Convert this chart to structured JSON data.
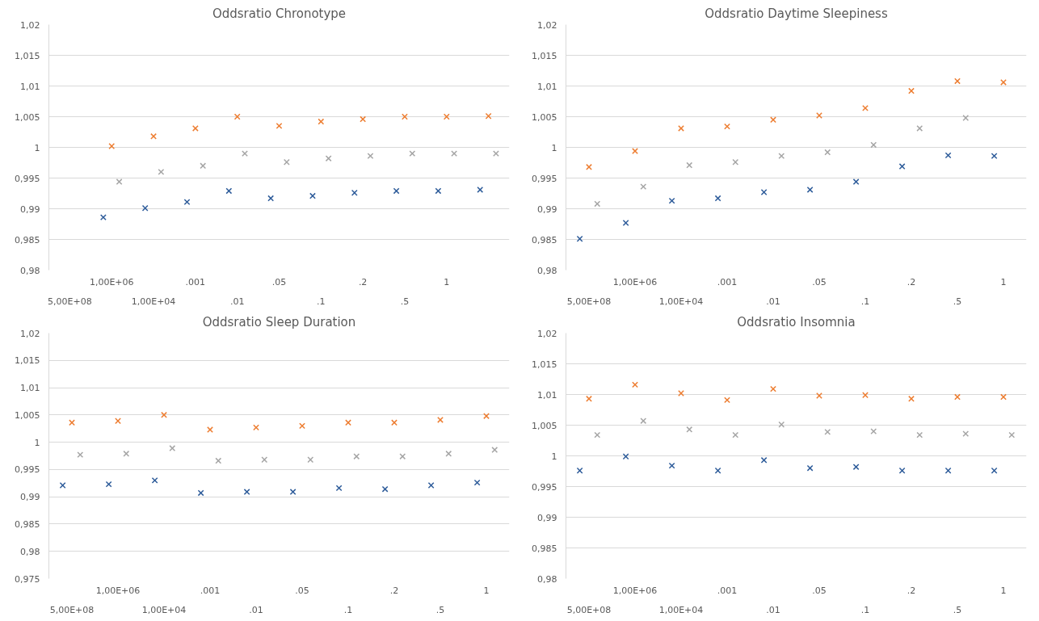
{
  "chart_data": [
    {
      "type": "scatter",
      "title": "Oddsratio Chronotype",
      "categories": [
        "5,00E+08",
        "1,00E+06",
        "1,00E+04",
        ".001",
        ".01",
        ".05",
        ".1",
        ".2",
        ".5",
        "1",
        null
      ],
      "ylim": [
        0.98,
        1.02
      ],
      "yticks": [
        {
          "value": 0.98,
          "label": "0,98"
        },
        {
          "value": 0.985,
          "label": "0,985"
        },
        {
          "value": 0.99,
          "label": "0,99"
        },
        {
          "value": 0.995,
          "label": "0,995"
        },
        {
          "value": 1,
          "label": "1"
        },
        {
          "value": 1.005,
          "label": "1,005"
        },
        {
          "value": 1.01,
          "label": "1,01"
        },
        {
          "value": 1.015,
          "label": "1,015"
        },
        {
          "value": 1.02,
          "label": "1,02"
        }
      ],
      "grid": "y",
      "marker": "cross",
      "series": [
        {
          "color": "#2e5c9a",
          "values": [
            null,
            0.9886,
            0.9901,
            0.9911,
            0.9929,
            0.9917,
            0.9921,
            0.9926,
            0.9929,
            0.9929,
            0.9931
          ]
        },
        {
          "color": "#ed7d31",
          "values": [
            null,
            1.0002,
            1.0018,
            1.0031,
            1.005,
            1.0035,
            1.0042,
            1.0046,
            1.005,
            1.005,
            1.0051
          ]
        },
        {
          "color": "#a5a5a5",
          "values": [
            null,
            0.9944,
            0.996,
            0.997,
            0.999,
            0.9976,
            0.9982,
            0.9986,
            0.999,
            0.999,
            0.999
          ]
        }
      ]
    },
    {
      "type": "scatter",
      "title": "Oddsratio Daytime Sleepiness",
      "categories": [
        "5,00E+08",
        "1,00E+06",
        "1,00E+04",
        ".001",
        ".01",
        ".05",
        ".1",
        ".2",
        ".5",
        "1"
      ],
      "ylim": [
        0.98,
        1.02
      ],
      "yticks": [
        {
          "value": 0.98,
          "label": "0,98"
        },
        {
          "value": 0.985,
          "label": "0,985"
        },
        {
          "value": 0.99,
          "label": "0,99"
        },
        {
          "value": 0.995,
          "label": "0,995"
        },
        {
          "value": 1,
          "label": "1"
        },
        {
          "value": 1.005,
          "label": "1,005"
        },
        {
          "value": 1.01,
          "label": "1,01"
        },
        {
          "value": 1.015,
          "label": "1,015"
        },
        {
          "value": 1.02,
          "label": "1,02"
        }
      ],
      "grid": "y",
      "marker": "cross",
      "series": [
        {
          "color": "#2e5c9a",
          "values": [
            0.9851,
            0.9877,
            0.9913,
            0.9917,
            0.9927,
            0.9931,
            0.9944,
            0.9969,
            0.9987,
            0.9986
          ]
        },
        {
          "color": "#ed7d31",
          "values": [
            0.9968,
            0.9994,
            1.0031,
            1.0034,
            1.0045,
            1.0052,
            1.0064,
            1.0092,
            1.0108,
            1.0106
          ]
        },
        {
          "color": "#a5a5a5",
          "values": [
            0.9908,
            0.9936,
            0.9971,
            0.9976,
            0.9986,
            0.9992,
            1.0004,
            1.0031,
            1.0048,
            null
          ]
        }
      ]
    },
    {
      "type": "scatter",
      "title": "Oddsratio Sleep Duration",
      "categories": [
        "5,00E+08",
        "1,00E+06",
        "1,00E+04",
        ".001",
        ".01",
        ".05",
        ".1",
        ".2",
        ".5",
        "1"
      ],
      "ylim": [
        0.975,
        1.02
      ],
      "yticks": [
        {
          "value": 0.975,
          "label": "0,975"
        },
        {
          "value": 0.98,
          "label": "0,98"
        },
        {
          "value": 0.985,
          "label": "0,985"
        },
        {
          "value": 0.99,
          "label": "0,99"
        },
        {
          "value": 0.995,
          "label": "0,995"
        },
        {
          "value": 1,
          "label": "1"
        },
        {
          "value": 1.005,
          "label": "1,005"
        },
        {
          "value": 1.01,
          "label": "1,01"
        },
        {
          "value": 1.015,
          "label": "1,015"
        },
        {
          "value": 1.02,
          "label": "1,02"
        }
      ],
      "grid": "y",
      "marker": "cross",
      "series": [
        {
          "color": "#2e5c9a",
          "values": [
            0.9921,
            0.9923,
            0.993,
            0.9907,
            0.9909,
            0.9909,
            0.9916,
            0.9914,
            0.9921,
            0.9926
          ]
        },
        {
          "color": "#ed7d31",
          "values": [
            1.0036,
            1.0039,
            1.005,
            1.0023,
            1.0027,
            1.003,
            1.0036,
            1.0036,
            1.0041,
            1.0048
          ]
        },
        {
          "color": "#a5a5a5",
          "values": [
            0.9977,
            0.9979,
            0.9989,
            0.9966,
            0.9968,
            0.9968,
            0.9974,
            0.9974,
            0.9979,
            0.9986
          ]
        }
      ]
    },
    {
      "type": "scatter",
      "title": "Oddsratio Insomnia",
      "categories": [
        "5,00E+08",
        "1,00E+06",
        "1,00E+04",
        ".001",
        ".01",
        ".05",
        ".1",
        ".2",
        ".5",
        "1"
      ],
      "ylim": [
        0.98,
        1.02
      ],
      "yticks": [
        {
          "value": 0.98,
          "label": "0,98"
        },
        {
          "value": 0.985,
          "label": "0,985"
        },
        {
          "value": 0.99,
          "label": "0,99"
        },
        {
          "value": 0.995,
          "label": "0,995"
        },
        {
          "value": 1,
          "label": "1"
        },
        {
          "value": 1.005,
          "label": "1,005"
        },
        {
          "value": 1.01,
          "label": "1,01"
        },
        {
          "value": 1.015,
          "label": "1,015"
        },
        {
          "value": 1.02,
          "label": "1,02"
        }
      ],
      "grid": "y",
      "marker": "cross",
      "series": [
        {
          "color": "#2e5c9a",
          "values": [
            0.9976,
            0.9999,
            0.9984,
            0.9976,
            0.9993,
            0.998,
            0.9982,
            0.9976,
            0.9976,
            0.9976
          ]
        },
        {
          "color": "#ed7d31",
          "values": [
            1.0093,
            1.0116,
            1.0102,
            1.0091,
            1.0109,
            1.0098,
            1.0099,
            1.0093,
            1.0096,
            1.0096
          ]
        },
        {
          "color": "#a5a5a5",
          "values": [
            1.0034,
            1.0057,
            1.0043,
            1.0034,
            1.0051,
            1.0039,
            1.004,
            1.0034,
            1.0036,
            1.0034
          ]
        }
      ]
    }
  ]
}
